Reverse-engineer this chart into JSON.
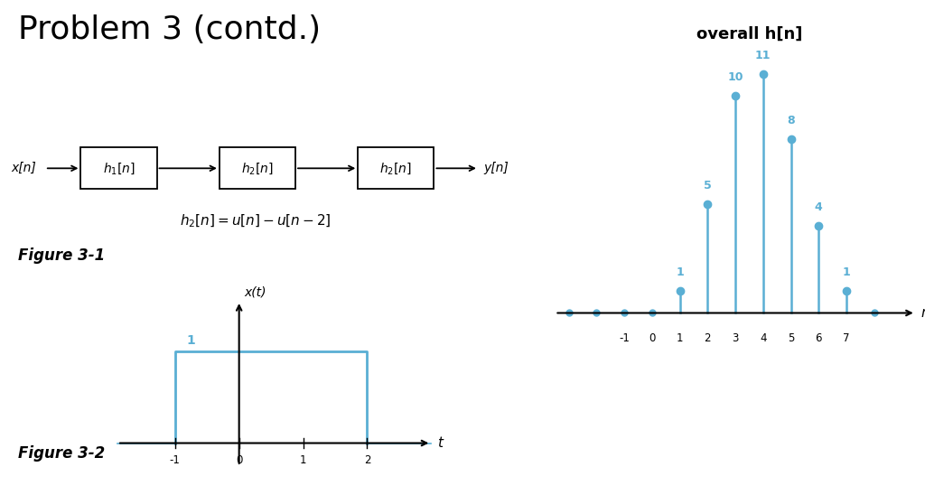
{
  "title": "Problem 3 (contd.)",
  "title_fontsize": 26,
  "bg_color": "#ffffff",
  "block_color": "#000000",
  "blue_color": "#5aafd4",
  "stem_values": [
    1,
    5,
    10,
    11,
    8,
    4,
    1
  ],
  "stem_indices": [
    1,
    2,
    3,
    4,
    5,
    6,
    7
  ],
  "stem_labels": [
    "1",
    "5",
    "10",
    "11",
    "8",
    "4",
    "1"
  ],
  "overall_label": "overall h[n]",
  "figure_label_1": "Figure 3-1",
  "figure_label_2": "Figure 3-2"
}
